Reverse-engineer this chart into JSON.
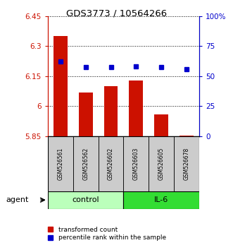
{
  "title": "GDS3773 / 10564266",
  "categories": [
    "GSM526561",
    "GSM526562",
    "GSM526602",
    "GSM526603",
    "GSM526605",
    "GSM526678"
  ],
  "bar_values": [
    6.35,
    6.07,
    6.1,
    6.13,
    5.96,
    5.855
  ],
  "dot_values": [
    6.225,
    6.195,
    6.195,
    6.2,
    6.195,
    6.185
  ],
  "ylim_left": [
    5.85,
    6.45
  ],
  "yticks_left": [
    5.85,
    6.0,
    6.15,
    6.3,
    6.45
  ],
  "ytick_labels_left": [
    "5.85",
    "6",
    "6.15",
    "6.3",
    "6.45"
  ],
  "ylim_right": [
    0,
    100
  ],
  "yticks_right": [
    0,
    25,
    50,
    75,
    100
  ],
  "ytick_labels_right": [
    "0",
    "25",
    "50",
    "75",
    "100%"
  ],
  "bar_color": "#cc1100",
  "dot_color": "#0000cc",
  "bar_bottom": 5.85,
  "groups": [
    {
      "label": "control",
      "indices": [
        0,
        1,
        2
      ],
      "color": "#bbffbb"
    },
    {
      "label": "IL-6",
      "indices": [
        3,
        4,
        5
      ],
      "color": "#33dd33"
    }
  ],
  "agent_label": "agent",
  "legend_bar_label": "transformed count",
  "legend_dot_label": "percentile rank within the sample",
  "sample_box_color": "#cccccc",
  "figure_width": 3.31,
  "figure_height": 3.54,
  "dpi": 100
}
